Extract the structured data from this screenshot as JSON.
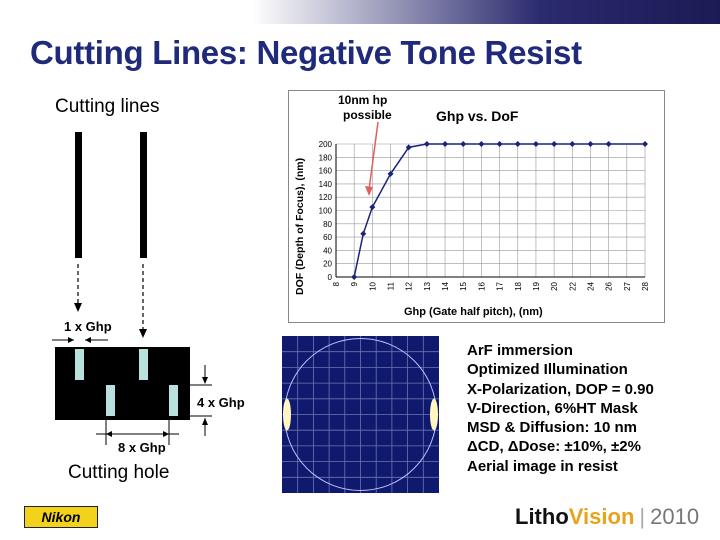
{
  "slide": {
    "title": "Cutting Lines: Negative Tone Resist",
    "cutting_lines_label": "Cutting lines",
    "cutting_hole_label": "Cutting hole",
    "dim_1x": "1 x Ghp",
    "dim_4x": "4 x Ghp",
    "dim_8x": "8 x Ghp"
  },
  "annotation": {
    "line1": "10nm hp",
    "line2": "possible"
  },
  "chart_data": {
    "type": "line",
    "title": "Ghp vs. DoF",
    "xlabel": "Ghp (Gate half pitch), (nm)",
    "ylabel": "DOF (Depth of Focus), (nm)",
    "ylim": [
      0,
      200
    ],
    "yticks": [
      "0",
      "20",
      "40",
      "60",
      "80",
      "100",
      "120",
      "140",
      "160",
      "180",
      "200"
    ],
    "x_categories": [
      "8",
      "9",
      "10",
      "11",
      "12",
      "13",
      "14",
      "15",
      "16",
      "17",
      "18",
      "19",
      "20",
      "22",
      "24",
      "26",
      "27",
      "28"
    ],
    "points": [
      {
        "x": "9",
        "xi": 1.0,
        "y": 0
      },
      {
        "x": "9.5",
        "xi": 1.5,
        "y": 65
      },
      {
        "x": "10",
        "xi": 2.0,
        "y": 105
      },
      {
        "x": "11",
        "xi": 3.0,
        "y": 155
      },
      {
        "x": "12",
        "xi": 4.0,
        "y": 195
      },
      {
        "x": "13",
        "xi": 5.0,
        "y": 200
      },
      {
        "x": "14",
        "xi": 6.0,
        "y": 200
      },
      {
        "x": "15",
        "xi": 7.0,
        "y": 200
      },
      {
        "x": "16",
        "xi": 8.0,
        "y": 200
      },
      {
        "x": "17",
        "xi": 9.0,
        "y": 200
      },
      {
        "x": "18",
        "xi": 10.0,
        "y": 200
      },
      {
        "x": "19",
        "xi": 11.0,
        "y": 200
      },
      {
        "x": "20",
        "xi": 12.0,
        "y": 200
      },
      {
        "x": "22",
        "xi": 13.0,
        "y": 200
      },
      {
        "x": "24",
        "xi": 14.0,
        "y": 200
      },
      {
        "x": "26",
        "xi": 15.0,
        "y": 200
      },
      {
        "x": "28",
        "xi": 17.0,
        "y": 200
      }
    ],
    "series_color": "#1a237e",
    "grid": true
  },
  "info_lines": [
    "ArF immersion",
    "Optimized Illumination",
    "X-Polarization, DOP = 0.90",
    "V-Direction, 6%HT Mask",
    "MSD & Diffusion: 10 nm",
    "ΔCD, ΔDose: ±10%, ±2%",
    "Aerial image in resist"
  ],
  "footer": {
    "logo": "Nikon",
    "brand_a": "Litho",
    "brand_b": "Vision",
    "separator": "|",
    "year": "2010"
  },
  "colors": {
    "title": "#1f2a7a",
    "accent_orange": "#e8a31c",
    "nikon_yellow": "#f2d21a",
    "hole": "#b8e0dc",
    "arrow": "#e06060"
  }
}
